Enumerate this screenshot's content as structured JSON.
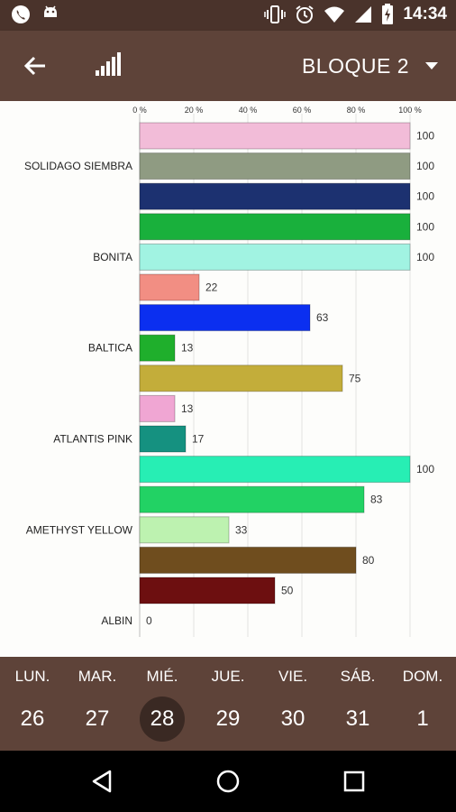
{
  "status_bar": {
    "time": "14:34",
    "left_icons": [
      "phone-icon",
      "android-icon"
    ],
    "right_icons": [
      "vibrate-icon",
      "alarm-icon",
      "wifi-icon",
      "cell-signal-icon",
      "battery-charging-icon"
    ]
  },
  "app_bar": {
    "block_label": "BLOQUE 2",
    "icons": [
      "arrow-back-icon",
      "signal-bars-icon",
      "dropdown-arrow-icon"
    ]
  },
  "chart_data": {
    "type": "bar",
    "orientation": "horizontal",
    "x_ticks": [
      "0 %",
      "20 %",
      "40 %",
      "60 %",
      "80 %",
      "100 %"
    ],
    "xlim": [
      0,
      100
    ],
    "grid": true,
    "category_labels": [
      {
        "label": "SOLIDAGO SIEMBRA",
        "bar_index": 1
      },
      {
        "label": "BONITA",
        "bar_index": 4
      },
      {
        "label": "BALTICA",
        "bar_index": 7
      },
      {
        "label": "ATLANTIS PINK",
        "bar_index": 10
      },
      {
        "label": "AMETHYST YELLOW",
        "bar_index": 13
      },
      {
        "label": "ALBIN",
        "bar_index": 16
      }
    ],
    "bars": [
      {
        "value": 100,
        "label": "100",
        "color": "#f2bcd8"
      },
      {
        "value": 100,
        "label": "100",
        "color": "#8f9b82"
      },
      {
        "value": 100,
        "label": "100",
        "color": "#1c3170"
      },
      {
        "value": 100,
        "label": "100",
        "color": "#19b03c"
      },
      {
        "value": 100,
        "label": "100",
        "color": "#a1f3e2"
      },
      {
        "value": 22,
        "label": "22",
        "color": "#f28e83"
      },
      {
        "value": 63,
        "label": "63",
        "color": "#0b2ff0"
      },
      {
        "value": 13,
        "label": "13",
        "color": "#1faf2c"
      },
      {
        "value": 75,
        "label": "75",
        "color": "#c3ad3a"
      },
      {
        "value": 13,
        "label": "13",
        "color": "#f0a6d3"
      },
      {
        "value": 17,
        "label": "17",
        "color": "#159180"
      },
      {
        "value": 100,
        "label": "100",
        "color": "#27eeb4"
      },
      {
        "value": 83,
        "label": "83",
        "color": "#22d264"
      },
      {
        "value": 33,
        "label": "33",
        "color": "#bdf2b0"
      },
      {
        "value": 80,
        "label": "80",
        "color": "#6f4d1e"
      },
      {
        "value": 50,
        "label": "50",
        "color": "#6d0f10"
      },
      {
        "value": 0,
        "label": "0",
        "color": "#cccccc"
      }
    ]
  },
  "calendar": {
    "days": [
      {
        "name": "LUN.",
        "num": "26",
        "selected": false
      },
      {
        "name": "MAR.",
        "num": "27",
        "selected": false
      },
      {
        "name": "MIÉ.",
        "num": "28",
        "selected": true
      },
      {
        "name": "JUE.",
        "num": "29",
        "selected": false
      },
      {
        "name": "VIE.",
        "num": "30",
        "selected": false
      },
      {
        "name": "SÁB.",
        "num": "31",
        "selected": false
      },
      {
        "name": "DOM.",
        "num": "1",
        "selected": false
      }
    ]
  },
  "nav_bar": {
    "icons": [
      "nav-back-icon",
      "nav-home-icon",
      "nav-recents-icon"
    ]
  },
  "colors": {
    "status_bar": "#4a332b",
    "app_bar": "#5e4339",
    "selected_day": "#3a2923"
  }
}
